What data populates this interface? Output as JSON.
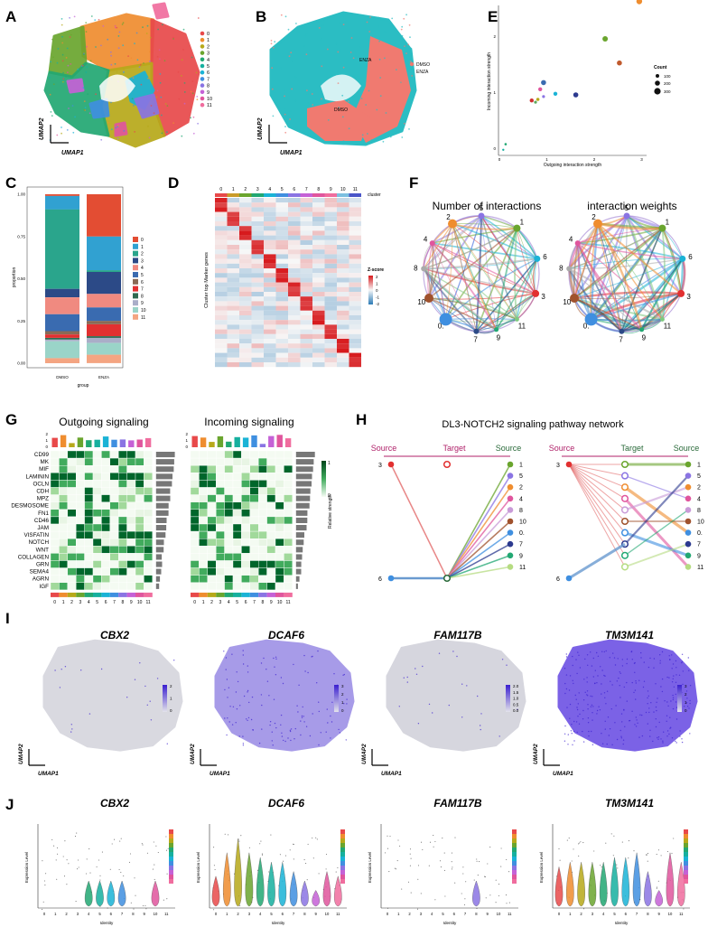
{
  "panel_letters": [
    "A",
    "B",
    "C",
    "D",
    "E",
    "F",
    "G",
    "H",
    "I",
    "J"
  ],
  "umap_axis": {
    "x": "UMAP1",
    "y": "UMAP2"
  },
  "palette": [
    "#e8494a",
    "#ef8d2f",
    "#b7a91a",
    "#6aa52e",
    "#22a873",
    "#16b09f",
    "#1ab3d6",
    "#3f8fe0",
    "#8a74e3",
    "#c561d6",
    "#e0559d",
    "#f06d9e"
  ],
  "panel_a": {
    "legend": [
      "0",
      "1",
      "2",
      "3",
      "4",
      "5",
      "6",
      "7",
      "8",
      "9",
      "10",
      "11"
    ]
  },
  "panel_b": {
    "legend": [
      {
        "label": "DMSO",
        "color": "#f07a70"
      },
      {
        "label": "ENZA",
        "color": "#2bbdc3"
      }
    ],
    "annotations": [
      "ENZA",
      "DMSO"
    ]
  },
  "panel_c": {
    "ylabel": "proportion",
    "xlabel": "group",
    "categories": [
      "DMSO",
      "ENZA"
    ],
    "yticks": [
      "0.00",
      "0.25",
      "0.50",
      "0.75",
      "1.00"
    ],
    "legend": [
      "0",
      "1",
      "2",
      "3",
      "4",
      "5",
      "6",
      "7",
      "8",
      "9",
      "10",
      "11"
    ],
    "colors": [
      "#e34d33",
      "#31a1d1",
      "#2aa58c",
      "#2c4a87",
      "#f08a80",
      "#3a6bb0",
      "#8a6a55",
      "#e23030",
      "#2f6a50",
      "#aaaec8",
      "#9ad4c8",
      "#f4a582"
    ]
  },
  "panel_d": {
    "cluster_label": "cluster",
    "ylabel": "Cluster top Marker genes",
    "clusters": [
      "0",
      "1",
      "2",
      "3",
      "4",
      "5",
      "6",
      "7",
      "8",
      "9",
      "10",
      "11"
    ],
    "legend_title": "Z-score",
    "legend_ticks": [
      "2",
      "1",
      "0",
      "-1",
      "-2"
    ]
  },
  "panel_e": {
    "xlabel": "Outgoing interaction strength",
    "ylabel": "Incoming interaction strength",
    "xticks": [
      "0",
      "1",
      "2",
      "3"
    ],
    "yticks": [
      "0",
      "1",
      "2"
    ],
    "count_title": "Count",
    "count_legend": [
      "100",
      "200",
      "300"
    ]
  },
  "panel_f": {
    "titles": [
      "Number of interactions",
      "interaction weights"
    ],
    "node_labels": [
      "0.",
      "1",
      "2",
      "3",
      "4",
      "5",
      "6",
      "7",
      "8",
      "9",
      "10",
      "11"
    ]
  },
  "panel_g": {
    "titles": [
      "Outgoing signaling",
      "Incoming signaling"
    ],
    "pathways": [
      "CD99",
      "MK",
      "MIF",
      "LAMININ",
      "OCLN",
      "CDH",
      "MPZ",
      "DESMOSOME",
      "FN1",
      "CD46",
      "JAM",
      "VISFATIN",
      "NOTCH",
      "WNT",
      "COLLAGEN",
      "GRN",
      "SEMA4",
      "AGRN",
      "IGF"
    ],
    "columns": [
      "0",
      "1",
      "2",
      "3",
      "4",
      "5",
      "6",
      "7",
      "8",
      "9",
      "10",
      "11"
    ],
    "bar_ticks": [
      "0",
      "1",
      "2"
    ],
    "legend_title": "Relative strength",
    "legend_ticks": [
      "1",
      "0"
    ]
  },
  "panel_h": {
    "title": "DL3-NOTCH2 signaling pathway network",
    "headers": [
      "Source",
      "Target",
      "Source"
    ],
    "left_sources": [
      "3",
      "6"
    ],
    "right_nodes": [
      "1",
      "5",
      "2",
      "4",
      "8",
      "10",
      "0.",
      "7",
      "9",
      "11"
    ]
  },
  "panel_i": {
    "genes": [
      "CBX2",
      "DCAF6",
      "FAM117B",
      "TM3M141"
    ],
    "scales": [
      [
        "2",
        "1",
        "0"
      ],
      [
        "3",
        "2",
        "1",
        "0"
      ],
      [
        "2.0",
        "1.5",
        "1.0",
        "0.5",
        "0.0"
      ],
      [
        "3",
        "2",
        "1",
        "0"
      ]
    ]
  },
  "panel_j": {
    "genes": [
      "CBX2",
      "DCAF6",
      "FAM117B",
      "TM3M141"
    ],
    "ylabel": "Expression Level",
    "xlabel": "Identity",
    "identities": [
      "0",
      "1",
      "2",
      "3",
      "4",
      "5",
      "6",
      "7",
      "8",
      "9",
      "10",
      "11"
    ]
  }
}
